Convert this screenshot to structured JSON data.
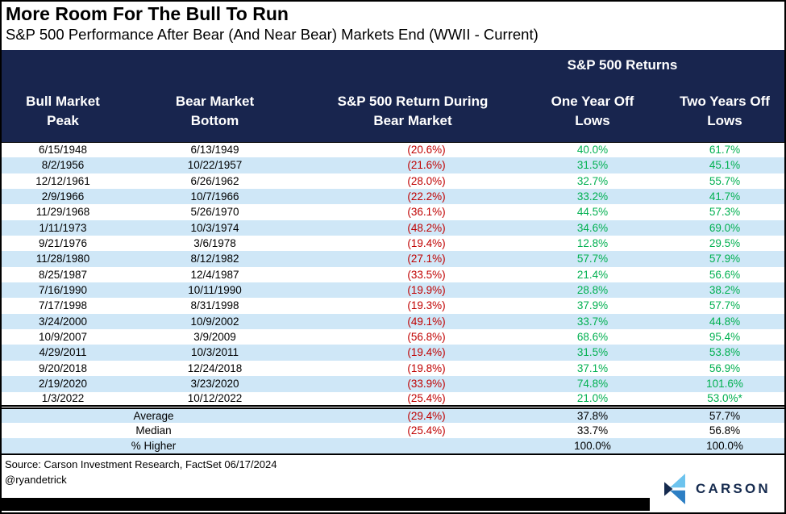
{
  "chart_data": {
    "type": "table",
    "title": "More Room For The Bull To Run",
    "subtitle": "S&P 500 Performance After Bear (And Near Bear) Markets End (WWII - Current)",
    "group_header": "S&P 500 Returns",
    "group_header_spans": [
      "One Year Off Lows",
      "Two Years Off Lows"
    ],
    "columns": [
      "Bull Market\nPeak",
      "Bear Market\nBottom",
      "S&P 500 Return During\nBear Market",
      "One Year Off\nLows",
      "Two Years Off\nLows"
    ],
    "rows": [
      [
        "6/15/1948",
        "6/13/1949",
        "(20.6%)",
        "40.0%",
        "61.7%"
      ],
      [
        "8/2/1956",
        "10/22/1957",
        "(21.6%)",
        "31.5%",
        "45.1%"
      ],
      [
        "12/12/1961",
        "6/26/1962",
        "(28.0%)",
        "32.7%",
        "55.7%"
      ],
      [
        "2/9/1966",
        "10/7/1966",
        "(22.2%)",
        "33.2%",
        "41.7%"
      ],
      [
        "11/29/1968",
        "5/26/1970",
        "(36.1%)",
        "44.5%",
        "57.3%"
      ],
      [
        "1/11/1973",
        "10/3/1974",
        "(48.2%)",
        "34.6%",
        "69.0%"
      ],
      [
        "9/21/1976",
        "3/6/1978",
        "(19.4%)",
        "12.8%",
        "29.5%"
      ],
      [
        "11/28/1980",
        "8/12/1982",
        "(27.1%)",
        "57.7%",
        "57.9%"
      ],
      [
        "8/25/1987",
        "12/4/1987",
        "(33.5%)",
        "21.4%",
        "56.6%"
      ],
      [
        "7/16/1990",
        "10/11/1990",
        "(19.9%)",
        "28.8%",
        "38.2%"
      ],
      [
        "7/17/1998",
        "8/31/1998",
        "(19.3%)",
        "37.9%",
        "57.7%"
      ],
      [
        "3/24/2000",
        "10/9/2002",
        "(49.1%)",
        "33.7%",
        "44.8%"
      ],
      [
        "10/9/2007",
        "3/9/2009",
        "(56.8%)",
        "68.6%",
        "95.4%"
      ],
      [
        "4/29/2011",
        "10/3/2011",
        "(19.4%)",
        "31.5%",
        "53.8%"
      ],
      [
        "9/20/2018",
        "12/24/2018",
        "(19.8%)",
        "37.1%",
        "56.9%"
      ],
      [
        "2/19/2020",
        "3/23/2020",
        "(33.9%)",
        "74.8%",
        "101.6%"
      ],
      [
        "1/3/2022",
        "10/12/2022",
        "(25.4%)",
        "21.0%",
        "53.0%*"
      ]
    ],
    "summary_rows": [
      [
        "Average",
        "(29.4%)",
        "37.8%",
        "57.7%"
      ],
      [
        "Median",
        "(25.4%)",
        "33.7%",
        "56.8%"
      ],
      [
        "% Higher",
        "",
        "100.0%",
        "100.0%"
      ]
    ]
  },
  "footer": {
    "source": "Source: Carson Investment Research, FactSet 06/17/2024",
    "handle": "@ryandetrick"
  },
  "logo": {
    "text": "CARSON"
  },
  "colors": {
    "header_navy": "#18254E",
    "row_stripe_blue": "#CFE7F7",
    "negative_red": "#C00000",
    "positive_green": "#00B050",
    "logo_light_blue": "#6CC3EE",
    "logo_mid_blue": "#2D7FC4",
    "logo_navy": "#152A4E",
    "bottom_bar_black": "#000000"
  }
}
